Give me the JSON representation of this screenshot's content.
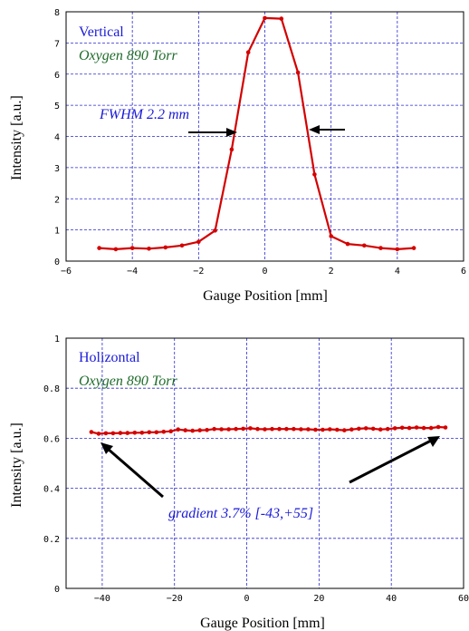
{
  "colors": {
    "series": "#d40000",
    "grid": "#2a2ad0",
    "annotation_blue": "#1a1ad8",
    "annotation_green": "#1e6b2a",
    "frame": "#000000"
  },
  "chart_data": [
    {
      "type": "line",
      "title": "",
      "xlabel": "Gauge Position [mm]",
      "ylabel": "Intensity [a.u.]",
      "xlim": [
        -6,
        6
      ],
      "ylim": [
        0,
        8
      ],
      "xticks": [
        -6,
        -4,
        -2,
        0,
        2,
        4,
        6
      ],
      "yticks": [
        0,
        1,
        2,
        3,
        4,
        5,
        6,
        7,
        8
      ],
      "grid": true,
      "annotations": {
        "direction": "Vertical",
        "gas": "Oxygen 890 Torr",
        "fwhm": "FWHM 2.2 mm"
      },
      "series": [
        {
          "x": [
            -5,
            -4.5,
            -4,
            -3.5,
            -3,
            -2.5,
            -2,
            -1.5,
            -1,
            -0.5,
            0,
            0.5,
            1,
            1.5,
            2,
            2.5,
            3,
            3.5,
            4,
            4.5
          ],
          "y": [
            0.42,
            0.38,
            0.42,
            0.4,
            0.44,
            0.5,
            0.62,
            0.98,
            3.58,
            6.7,
            7.8,
            7.78,
            6.05,
            2.78,
            0.8,
            0.55,
            0.5,
            0.42,
            0.38,
            0.42
          ]
        }
      ]
    },
    {
      "type": "line",
      "title": "",
      "xlabel": "Gauge Position [mm]",
      "ylabel": "Intensity [a.u.]",
      "xlim": [
        -50,
        60
      ],
      "ylim": [
        0,
        1
      ],
      "xticks": [
        -40,
        -20,
        0,
        20,
        40,
        60
      ],
      "yticks": [
        0,
        0.2,
        0.4,
        0.6,
        0.8,
        1
      ],
      "grid": true,
      "annotations": {
        "direction": "Holizontal",
        "gas": "Oxygen 890 Torr",
        "gradient": "gradient 3.7% [-43,+55]"
      },
      "series": [
        {
          "x": [
            -43,
            -41,
            -39,
            -37,
            -35,
            -33,
            -31,
            -29,
            -27,
            -25,
            -23,
            -21,
            -19,
            -17,
            -15,
            -13,
            -11,
            -9,
            -7,
            -5,
            -3,
            -1,
            1,
            3,
            5,
            7,
            9,
            11,
            13,
            15,
            17,
            19,
            21,
            23,
            25,
            27,
            29,
            31,
            33,
            35,
            37,
            39,
            41,
            43,
            45,
            47,
            49,
            51,
            53,
            55
          ],
          "y": [
            0.625,
            0.618,
            0.62,
            0.62,
            0.621,
            0.621,
            0.622,
            0.622,
            0.624,
            0.624,
            0.626,
            0.628,
            0.635,
            0.632,
            0.63,
            0.632,
            0.633,
            0.637,
            0.636,
            0.636,
            0.637,
            0.638,
            0.64,
            0.637,
            0.636,
            0.637,
            0.637,
            0.637,
            0.637,
            0.636,
            0.636,
            0.634,
            0.634,
            0.636,
            0.634,
            0.632,
            0.635,
            0.638,
            0.64,
            0.638,
            0.635,
            0.637,
            0.64,
            0.642,
            0.641,
            0.643,
            0.641,
            0.641,
            0.645,
            0.643
          ]
        }
      ]
    }
  ]
}
